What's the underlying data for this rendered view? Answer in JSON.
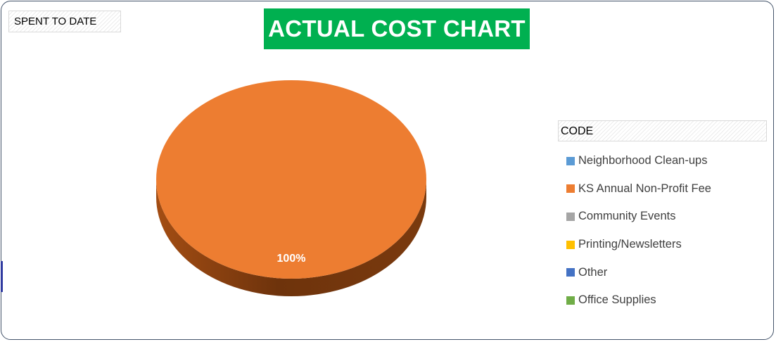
{
  "field_button": {
    "label": "SPENT TO DATE"
  },
  "title": {
    "text": "ACTUAL COST CHART",
    "background": "#00b050"
  },
  "legend": {
    "title": "CODE"
  },
  "chart_data": {
    "type": "pie",
    "title": "ACTUAL COST CHART",
    "legend_title": "CODE",
    "legend_position": "right",
    "three_d": true,
    "categories": [
      "Neighborhood Clean-ups",
      "KS Annual Non-Profit Fee",
      "Community Events",
      "Printing/Newsletters",
      "Other",
      "Office Supplies"
    ],
    "values": [
      0,
      100,
      0,
      0,
      0,
      0
    ],
    "colors": [
      "#5b9bd5",
      "#ed7d31",
      "#a5a5a5",
      "#ffc000",
      "#4472c4",
      "#70ad47"
    ],
    "data_labels": [
      "",
      "100%",
      "",
      "",
      "",
      ""
    ]
  }
}
